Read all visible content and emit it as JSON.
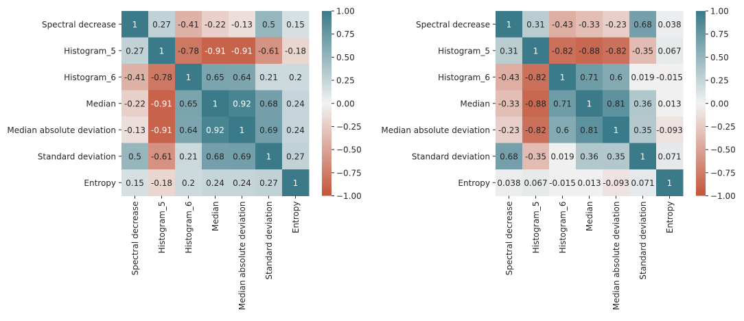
{
  "chart_data": [
    {
      "type": "heatmap",
      "title": "",
      "labels": [
        "Spectral decrease",
        "Histogram_5",
        "Histogram_6",
        "Median",
        "Median absolute deviation",
        "Standard deviation",
        "Entropy"
      ],
      "cells": [
        [
          "1",
          "0.27",
          "-0.41",
          "-0.22",
          "-0.13",
          "0.5",
          "0.15"
        ],
        [
          "0.27",
          "1",
          "-0.78",
          "-0.91",
          "-0.91",
          "-0.61",
          "-0.18"
        ],
        [
          "-0.41",
          "-0.78",
          "1",
          "0.65",
          "0.64",
          "0.21",
          "0.2"
        ],
        [
          "-0.22",
          "-0.91",
          "0.65",
          "1",
          "0.92",
          "0.68",
          "0.24"
        ],
        [
          "-0.13",
          "-0.91",
          "0.64",
          "0.92",
          "1",
          "0.69",
          "0.24"
        ],
        [
          "0.5",
          "-0.61",
          "0.21",
          "0.68",
          "0.69",
          "1",
          "0.27"
        ],
        [
          "0.15",
          "-0.18",
          "0.2",
          "0.24",
          "0.24",
          "0.27",
          "1"
        ]
      ],
      "colorbar": {
        "range": [
          -1,
          1
        ],
        "ticks": [
          "1.00",
          "0.75",
          "0.50",
          "0.25",
          "0.00",
          "−0.25",
          "−0.50",
          "−0.75",
          "−1.00"
        ],
        "low_color": "#c3553a",
        "mid_color": "#f2f2f2",
        "high_color": "#3a7a89"
      }
    },
    {
      "type": "heatmap",
      "title": "",
      "labels": [
        "Spectral decrease",
        "Histogram_5",
        "Histogram_6",
        "Median",
        "Median absolute deviation",
        "Standard deviation",
        "Entropy"
      ],
      "cells": [
        [
          "1",
          "0.31",
          "-0.43",
          "-0.33",
          "-0.23",
          "0.68",
          "0.038"
        ],
        [
          "0.31",
          "1",
          "-0.82",
          "-0.88",
          "-0.82",
          "-0.35",
          "0.067"
        ],
        [
          "-0.43",
          "-0.82",
          "1",
          "0.71",
          "0.6",
          "0.019",
          "-0.015"
        ],
        [
          "-0.33",
          "-0.88",
          "0.71",
          "1",
          "0.81",
          "0.36",
          "0.013"
        ],
        [
          "-0.23",
          "-0.82",
          "0.6",
          "0.81",
          "1",
          "0.35",
          "-0.093"
        ],
        [
          "0.68",
          "-0.35",
          "0.019",
          "0.36",
          "0.35",
          "1",
          "0.071"
        ],
        [
          "0.038",
          "0.067",
          "-0.015",
          "0.013",
          "-0.093",
          "0.071",
          "1"
        ]
      ],
      "colorbar": {
        "range": [
          -1,
          1
        ],
        "ticks": [
          "1.00",
          "0.75",
          "0.50",
          "0.25",
          "0.00",
          "−0.25",
          "−0.50",
          "−0.75",
          "−1.00"
        ],
        "low_color": "#c3553a",
        "mid_color": "#f2f2f2",
        "high_color": "#3a7a89"
      }
    }
  ]
}
